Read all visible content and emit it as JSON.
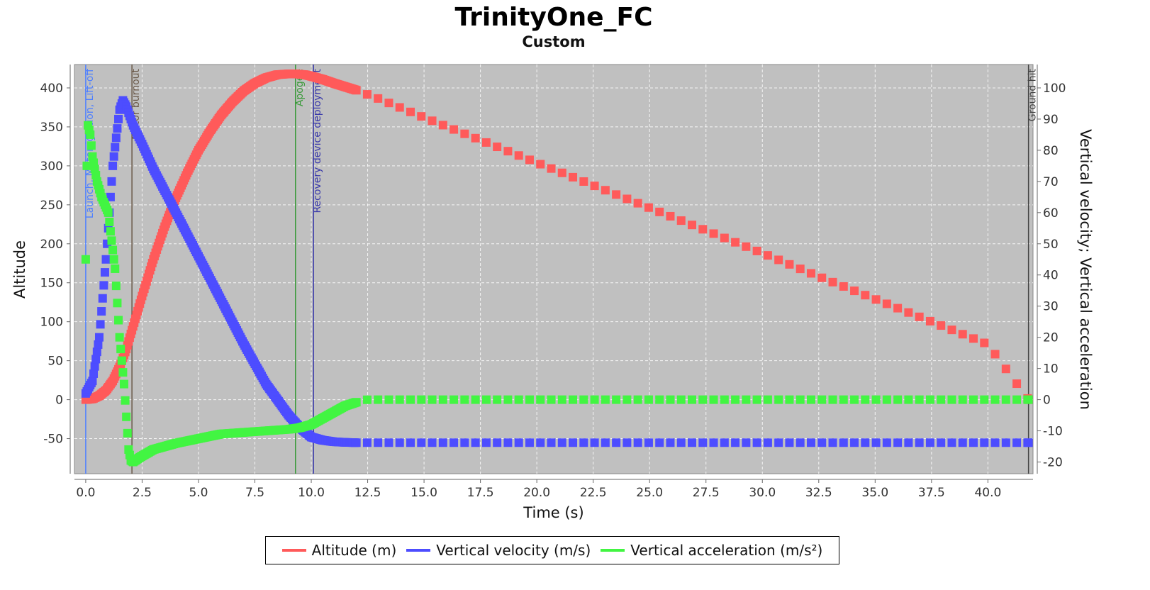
{
  "chart_data": {
    "type": "scatter",
    "title": "TrinityOne_FC",
    "subtitle": "Custom",
    "xlabel": "Time (s)",
    "ylabel_left": "Altitude",
    "ylabel_right": "Vertical velocity; Vertical acceleration",
    "xlim": [
      -0.5,
      42.0
    ],
    "ylim_left": [
      -95,
      430
    ],
    "ylim_right": [
      -23.75,
      107.5
    ],
    "x_ticks": [
      "0.0",
      "2.5",
      "5.0",
      "7.5",
      "10.0",
      "12.5",
      "15.0",
      "17.5",
      "20.0",
      "22.5",
      "25.0",
      "27.5",
      "30.0",
      "32.5",
      "35.0",
      "37.5",
      "40.0"
    ],
    "x_tick_values": [
      0,
      2.5,
      5,
      7.5,
      10,
      12.5,
      15,
      17.5,
      20,
      22.5,
      25,
      27.5,
      30,
      32.5,
      35,
      37.5,
      40
    ],
    "y_left_ticks": [
      "-50",
      "0",
      "50",
      "100",
      "150",
      "200",
      "250",
      "300",
      "350",
      "400"
    ],
    "y_left_tick_values": [
      -50,
      0,
      50,
      100,
      150,
      200,
      250,
      300,
      350,
      400
    ],
    "y_right_ticks": [
      "-20",
      "-10",
      "0",
      "10",
      "20",
      "30",
      "40",
      "50",
      "60",
      "70",
      "80",
      "90",
      "100"
    ],
    "y_right_tick_values": [
      -20,
      -10,
      0,
      10,
      20,
      30,
      40,
      50,
      60,
      70,
      80,
      90,
      100
    ],
    "grid": true,
    "legend_position": "bottom",
    "series": [
      {
        "name": "Altitude (m)",
        "axis": "left",
        "color": "#ff5a5a",
        "x": [
          0,
          0.3,
          0.6,
          0.9,
          1.2,
          1.5,
          1.8,
          2.1,
          2.5,
          3,
          3.5,
          4,
          4.5,
          5,
          5.5,
          6,
          6.5,
          7,
          7.5,
          8,
          8.5,
          9,
          9.3,
          9.7,
          10,
          10.5,
          11,
          12,
          13,
          15,
          17.5,
          20,
          22.5,
          25,
          27.5,
          30,
          32.5,
          35,
          37.5,
          40,
          41.8
        ],
        "y": [
          0,
          1,
          5,
          12,
          24,
          42,
          65,
          94,
          133,
          180,
          222,
          259,
          291,
          320,
          344,
          365,
          382,
          396,
          406,
          413,
          417,
          418,
          418,
          417,
          415,
          411,
          406,
          397,
          386,
          362,
          333,
          304,
          275,
          246,
          217,
          188,
          158,
          129,
          100,
          71,
          0
        ]
      },
      {
        "name": "Vertical velocity (m/s)",
        "axis": "right",
        "color": "#4d4dff",
        "x": [
          0,
          0.3,
          0.6,
          0.9,
          1.2,
          1.5,
          1.65,
          1.8,
          2.1,
          2.5,
          3,
          4,
          5,
          6,
          7,
          8,
          9,
          9.5,
          10,
          10.5,
          11,
          11.5,
          12,
          12.5,
          15,
          20,
          25,
          30,
          35,
          40,
          41.8
        ],
        "y": [
          2,
          6,
          20,
          45,
          75,
          93,
          96,
          94,
          88,
          82,
          74,
          60,
          46,
          32,
          18,
          5,
          -5,
          -9,
          -12,
          -13,
          -13.5,
          -13.7,
          -13.8,
          -13.8,
          -13.8,
          -13.8,
          -13.8,
          -13.8,
          -13.8,
          -13.8,
          -13.8
        ]
      },
      {
        "name": "Vertical acceleration (m/s²)",
        "axis": "right",
        "color": "#42f542",
        "x": [
          0,
          0.05,
          0.1,
          0.2,
          0.3,
          0.5,
          0.7,
          1,
          1.3,
          1.5,
          1.7,
          1.9,
          2.0,
          2.1,
          2.2,
          2.4,
          3,
          4,
          5,
          6,
          7,
          8,
          9,
          9.5,
          10,
          10.5,
          11,
          11.5,
          12,
          12.5,
          15,
          20,
          25,
          30,
          35,
          40,
          41.8
        ],
        "y": [
          45,
          75,
          88,
          85,
          78,
          70,
          65,
          60,
          42,
          20,
          5,
          -16,
          -19.5,
          -20,
          -19.5,
          -18.5,
          -16,
          -14,
          -12.5,
          -11,
          -10.5,
          -10,
          -9.5,
          -9,
          -8,
          -6,
          -4,
          -2,
          -0.8,
          0,
          0,
          0,
          0,
          0,
          0,
          0,
          0
        ]
      }
    ],
    "events": [
      {
        "t": 0.0,
        "label": "Launch, Motor ignition, Lift-off",
        "color": "#4d7fff"
      },
      {
        "t": 2.05,
        "label": "Motor burnout",
        "color": "#6b5a4a"
      },
      {
        "t": 9.3,
        "label": "Apogee",
        "color": "#3a9a3a"
      },
      {
        "t": 10.1,
        "label": "Recovery device deployment",
        "color": "#3a3aaa"
      },
      {
        "t": 41.8,
        "label": "Ground hit",
        "color": "#444444"
      }
    ]
  },
  "legend": {
    "items": [
      {
        "label": "Altitude (m)",
        "color": "#ff5a5a"
      },
      {
        "label": "Vertical velocity (m/s)",
        "color": "#4d4dff"
      },
      {
        "label": "Vertical acceleration (m/s²)",
        "color": "#42f542"
      }
    ]
  }
}
